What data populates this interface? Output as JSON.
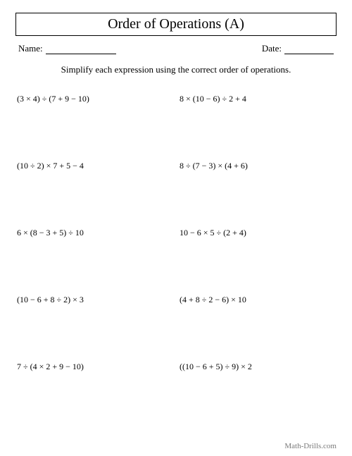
{
  "title": "Order of Operations (A)",
  "name_label": "Name:",
  "date_label": "Date:",
  "instructions": "Simplify each expression using the correct order of operations.",
  "problems": [
    "(3 × 4) ÷ (7 + 9 − 10)",
    "8 × (10 − 6) ÷ 2 + 4",
    "(10 ÷ 2) × 7 + 5 − 4",
    "8 ÷ (7 − 3) × (4 + 6)",
    "6 × (8 − 3 + 5) ÷ 10",
    "10 − 6 × 5 ÷ (2 + 4)",
    "(10 − 6 + 8 ÷ 2) × 3",
    "(4 + 8 ÷ 2 − 6) × 10",
    "7 ÷ (4 × 2 + 9 − 10)",
    "((10 − 6 + 5) ÷ 9) × 2"
  ],
  "footer": "Math-Drills.com"
}
